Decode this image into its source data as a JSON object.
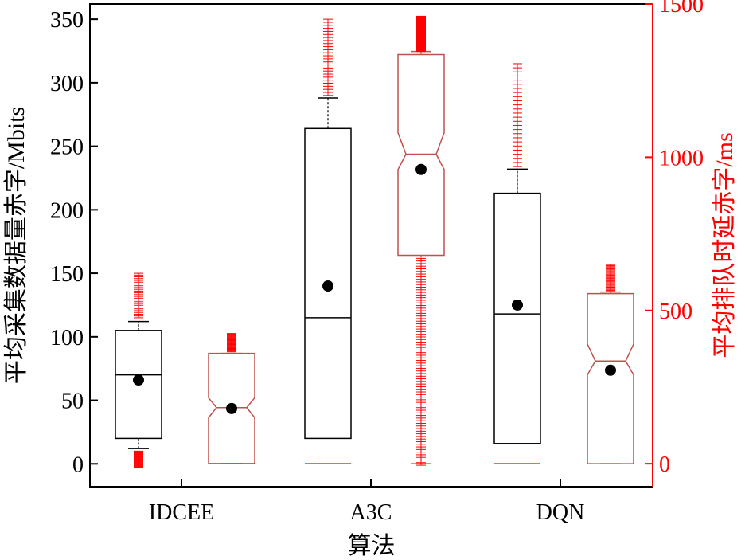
{
  "chart_data": {
    "type": "box",
    "xlabel": "算法",
    "ylabel_left": "平均采集数据量赤字/Mbits",
    "ylabel_right": "平均排队时延赤字/ms",
    "categories": [
      "IDCEE",
      "A3C",
      "DQN"
    ],
    "y_left": {
      "lim": [
        -18,
        362
      ],
      "ticks": [
        0,
        50,
        100,
        150,
        200,
        250,
        300,
        350
      ]
    },
    "y_right": {
      "lim": [
        -75,
        1500
      ],
      "ticks": [
        0,
        500,
        1000,
        1500
      ]
    },
    "colors": {
      "left_series": "#000000",
      "right_series": "#ff0000",
      "box_right_edge": "#c0504d",
      "outlier": "#ff0000"
    },
    "series": [
      {
        "axis": "left",
        "notched": false,
        "boxes": [
          {
            "category": "IDCEE",
            "q1": 20,
            "median": 70,
            "q3": 105,
            "whisker_low": 12,
            "whisker_high": 112,
            "mean": 66,
            "outliers_low": [
              -3,
              10
            ],
            "outliers_high": [
              115,
              150
            ]
          },
          {
            "category": "A3C",
            "q1": 20,
            "median": 115,
            "q3": 264,
            "whisker_low": null,
            "whisker_high": 288,
            "mean": 140,
            "outliers_low": [],
            "outliers_high": [
              290,
              350
            ]
          },
          {
            "category": "DQN",
            "q1": 16,
            "median": 118,
            "q3": 213,
            "whisker_low": null,
            "whisker_high": 232,
            "mean": 125,
            "outliers_low": [],
            "outliers_high": [
              234,
              315
            ]
          }
        ]
      },
      {
        "axis": "right",
        "notched": true,
        "boxes": [
          {
            "category": "IDCEE",
            "q1": 0,
            "median": 183,
            "q3": 360,
            "notch_low": 150,
            "notch_high": 215,
            "whisker_low": 0,
            "whisker_high": 360,
            "mean": 180,
            "outliers_low": [],
            "outliers_high": [
              365,
              425
            ]
          },
          {
            "category": "A3C",
            "q1": 680,
            "median": 1010,
            "q3": 1335,
            "notch_low": 960,
            "notch_high": 1080,
            "whisker_low": 0,
            "whisker_high": 1345,
            "mean": 960,
            "outliers_low": [
              -5,
              670
            ],
            "outliers_high": [
              1345,
              1460
            ]
          },
          {
            "category": "DQN",
            "q1": 0,
            "median": 335,
            "q3": 555,
            "notch_low": 290,
            "notch_high": 390,
            "whisker_low": 0,
            "whisker_high": 560,
            "mean": 305,
            "outliers_low": [],
            "outliers_high": [
              562,
              650
            ]
          }
        ]
      }
    ],
    "zero_lines": [
      {
        "category": "IDCEE",
        "series": "left",
        "value": 0
      },
      {
        "category": "A3C",
        "series": "left",
        "value": 0
      },
      {
        "category": "DQN",
        "series": "left",
        "value": 0
      }
    ]
  }
}
